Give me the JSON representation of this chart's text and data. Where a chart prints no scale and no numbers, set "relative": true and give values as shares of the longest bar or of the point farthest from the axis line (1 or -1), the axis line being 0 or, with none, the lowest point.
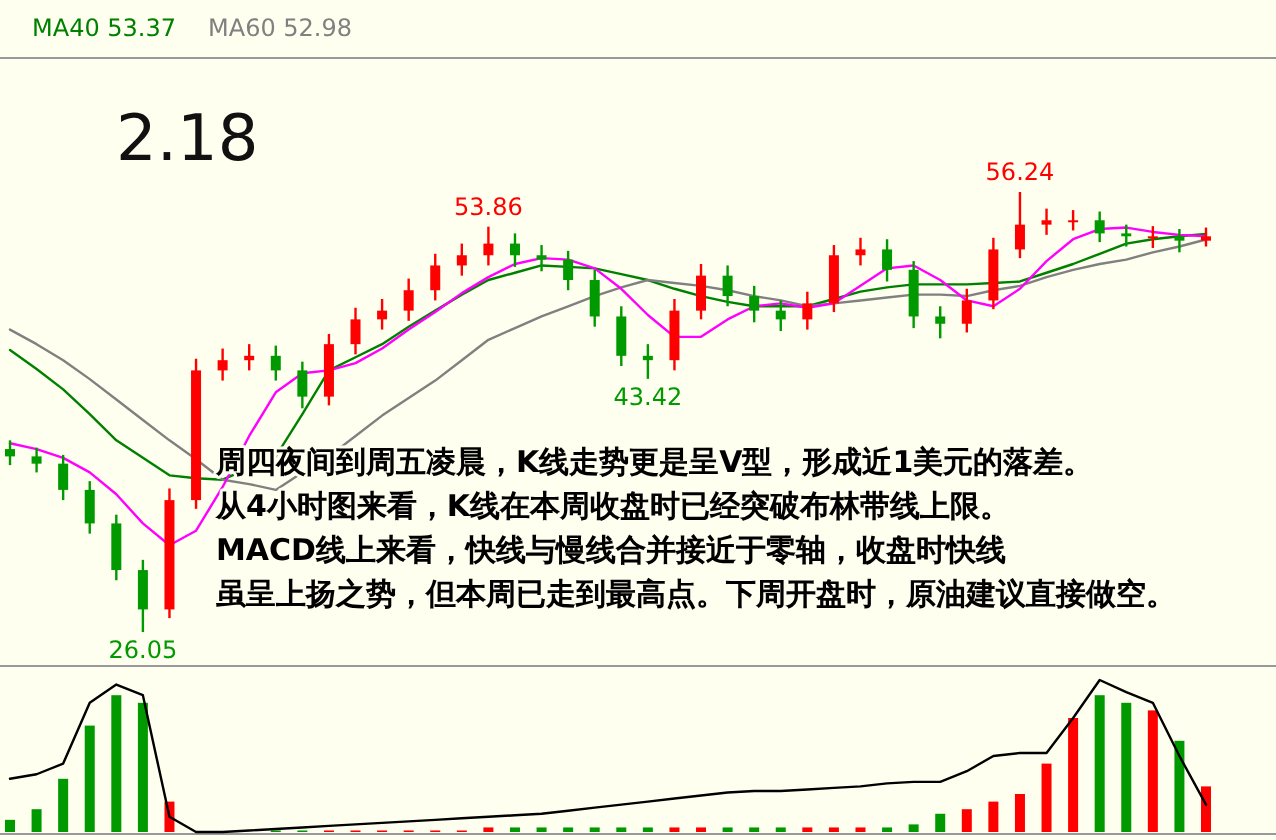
{
  "chart_data": [
    {
      "type": "candlestick",
      "title": "2.18",
      "legend": "top left",
      "categories": [
        null,
        null,
        null,
        null,
        null,
        null,
        null,
        null,
        null,
        null,
        null,
        null,
        null,
        null,
        null,
        null,
        null,
        null,
        null,
        null,
        null,
        null,
        null,
        null,
        null,
        null,
        null,
        null,
        null,
        null,
        null,
        null,
        null,
        null,
        null,
        null,
        null,
        null,
        null,
        null,
        null,
        null,
        null,
        null,
        null,
        null
      ],
      "ohlc": [
        [
          38.6,
          39.2,
          37.5,
          38.1
        ],
        [
          38.1,
          38.7,
          37.0,
          37.6
        ],
        [
          37.6,
          38.2,
          35.1,
          35.8
        ],
        [
          35.8,
          36.4,
          32.8,
          33.5
        ],
        [
          33.5,
          34.1,
          29.6,
          30.3
        ],
        [
          30.3,
          31.0,
          26.05,
          27.6
        ],
        [
          27.6,
          35.9,
          27.0,
          35.1
        ],
        [
          35.1,
          44.8,
          34.5,
          44.0
        ],
        [
          44.0,
          45.5,
          43.3,
          44.7
        ],
        [
          44.7,
          45.8,
          44.0,
          45.0
        ],
        [
          45.0,
          45.7,
          43.3,
          44.0
        ],
        [
          44.0,
          44.6,
          41.4,
          42.2
        ],
        [
          42.2,
          46.5,
          41.6,
          45.8
        ],
        [
          45.8,
          48.3,
          45.1,
          47.5
        ],
        [
          47.5,
          48.9,
          46.8,
          48.1
        ],
        [
          48.1,
          50.3,
          47.4,
          49.5
        ],
        [
          49.5,
          52.0,
          48.8,
          51.2
        ],
        [
          51.2,
          52.7,
          50.5,
          51.9
        ],
        [
          51.9,
          53.86,
          51.2,
          52.7
        ],
        [
          52.7,
          53.4,
          51.1,
          51.9
        ],
        [
          51.9,
          52.6,
          50.8,
          51.6
        ],
        [
          51.6,
          52.2,
          49.5,
          50.2
        ],
        [
          50.2,
          50.9,
          47.0,
          47.7
        ],
        [
          47.7,
          48.4,
          44.3,
          45.0
        ],
        [
          45.0,
          45.8,
          43.42,
          44.7
        ],
        [
          44.7,
          48.9,
          44.0,
          48.1
        ],
        [
          48.1,
          51.3,
          47.5,
          50.5
        ],
        [
          50.5,
          51.2,
          48.4,
          49.1
        ],
        [
          49.1,
          49.8,
          47.3,
          48.1
        ],
        [
          48.1,
          48.8,
          46.7,
          47.5
        ],
        [
          47.5,
          49.4,
          46.8,
          48.6
        ],
        [
          48.6,
          52.6,
          48.0,
          51.9
        ],
        [
          51.9,
          53.1,
          51.2,
          52.3
        ],
        [
          52.3,
          53.0,
          50.1,
          50.9
        ],
        [
          50.9,
          51.5,
          46.9,
          47.7
        ],
        [
          47.7,
          48.4,
          46.2,
          47.2
        ],
        [
          47.2,
          49.6,
          46.6,
          48.8
        ],
        [
          48.8,
          53.1,
          48.2,
          52.3
        ],
        [
          52.3,
          56.24,
          51.7,
          54.0
        ],
        [
          54.0,
          55.1,
          53.3,
          54.3
        ],
        [
          54.3,
          55.0,
          53.6,
          54.3
        ],
        [
          54.3,
          54.9,
          52.8,
          53.4
        ],
        [
          53.4,
          54.0,
          52.5,
          53.2
        ],
        [
          53.2,
          53.9,
          52.4,
          53.2
        ],
        [
          53.2,
          53.7,
          52.1,
          52.9
        ],
        [
          52.9,
          53.8,
          52.5,
          53.2
        ]
      ],
      "colors": [
        "#009900",
        "#009900",
        "#009900",
        "#009900",
        "#009900",
        "#009900",
        "#ff0000",
        "#ff0000",
        "#ff0000",
        "#ff0000",
        "#009900",
        "#009900",
        "#ff0000",
        "#ff0000",
        "#ff0000",
        "#ff0000",
        "#ff0000",
        "#ff0000",
        "#ff0000",
        "#009900",
        "#009900",
        "#009900",
        "#009900",
        "#009900",
        "#009900",
        "#ff0000",
        "#ff0000",
        "#009900",
        "#009900",
        "#009900",
        "#ff0000",
        "#ff0000",
        "#ff0000",
        "#009900",
        "#009900",
        "#009900",
        "#ff0000",
        "#ff0000",
        "#ff0000",
        "#ff0000",
        "#ff0000",
        "#009900",
        "#009900",
        "#ff0000",
        "#009900",
        "#ff0000"
      ],
      "series": [
        {
          "type": "line",
          "name": "MA40 53.37",
          "color": "#008000",
          "values": [
            45.4,
            44.1,
            42.7,
            41.0,
            39.2,
            38.0,
            36.8,
            36.6,
            36.5,
            37.3,
            38.1,
            41.0,
            44.0,
            44.9,
            45.8,
            47.0,
            48.1,
            49.2,
            50.2,
            50.7,
            51.2,
            51.1,
            51.0,
            50.6,
            50.2,
            49.6,
            49.1,
            48.7,
            48.4,
            48.4,
            48.4,
            48.9,
            49.4,
            49.7,
            49.9,
            49.9,
            49.9,
            50.0,
            50.1,
            50.7,
            51.3,
            52.0,
            52.7,
            53.0,
            53.2,
            53.37
          ]
        },
        {
          "type": "line",
          "name": "MA60 52.98",
          "color": "#808080",
          "values": [
            46.8,
            45.8,
            44.7,
            43.4,
            42.0,
            40.6,
            39.2,
            37.9,
            36.5,
            36.2,
            35.8,
            37.0,
            38.1,
            39.5,
            40.9,
            42.1,
            43.3,
            44.7,
            46.1,
            46.9,
            47.7,
            48.4,
            49.1,
            49.7,
            50.2,
            50.0,
            49.8,
            49.5,
            49.1,
            48.8,
            48.4,
            48.6,
            48.8,
            49.0,
            49.2,
            49.2,
            49.1,
            49.5,
            49.8,
            50.4,
            50.9,
            51.3,
            51.6,
            52.1,
            52.5,
            52.98
          ]
        },
        {
          "type": "line",
          "color": "#ff00ff",
          "values": [
            39.0,
            38.6,
            38.0,
            37.0,
            35.5,
            33.5,
            32.0,
            33.0,
            36.0,
            39.5,
            42.5,
            43.8,
            44.0,
            44.5,
            45.5,
            46.8,
            48.0,
            49.3,
            50.4,
            51.3,
            51.7,
            51.6,
            51.0,
            49.6,
            47.8,
            46.3,
            46.3,
            47.5,
            48.4,
            48.6,
            48.3,
            48.6,
            49.8,
            51.0,
            51.2,
            50.2,
            48.8,
            48.4,
            49.6,
            51.5,
            53.0,
            53.7,
            53.8,
            53.5,
            53.3,
            53.2
          ]
        }
      ],
      "annotations": [
        {
          "text": "53.86",
          "y": 53.86
        },
        {
          "text": "43.42",
          "y": 43.42
        },
        {
          "text": "56.24",
          "y": 56.24
        },
        {
          "text": "26.05",
          "y": 26.05
        },
        "周四夜间到周五凌晨，K线走势更是呈V型，形成近1美元的落差。",
        "从4小时图来看，K线在本周收盘时已经突破布林带线上限。",
        "MACD线上来看，快线与慢线合并接近于零轴，收盘时快线",
        "虽呈上扬之势，但本周已走到最高点。下周开盘时，原油建议直接做空。"
      ]
    },
    {
      "type": "bar",
      "relative": true,
      "categories": [
        null,
        null,
        null,
        null,
        null,
        null,
        null,
        null,
        null,
        null,
        null,
        null,
        null,
        null,
        null,
        null,
        null,
        null,
        null,
        null,
        null,
        null,
        null,
        null,
        null,
        null,
        null,
        null,
        null,
        null,
        null,
        null,
        null,
        null,
        null,
        null,
        null,
        null,
        null,
        null,
        null,
        null,
        null,
        null,
        null,
        null
      ],
      "series": [
        {
          "type": "bar",
          "colors": [
            "#009900",
            "#009900",
            "#009900",
            "#009900",
            "#009900",
            "#009900",
            "#ff0000",
            null,
            null,
            null,
            "#009900",
            "#009900",
            "#ff0000",
            "#ff0000",
            "#ff0000",
            "#ff0000",
            "#ff0000",
            "#ff0000",
            "#ff0000",
            "#009900",
            "#009900",
            "#009900",
            "#009900",
            "#009900",
            "#009900",
            "#ff0000",
            "#ff0000",
            "#009900",
            "#009900",
            "#009900",
            "#ff0000",
            "#ff0000",
            "#ff0000",
            "#009900",
            "#009900",
            "#009900",
            "#ff0000",
            "#ff0000",
            "#ff0000",
            "#ff0000",
            "#ff0000",
            "#009900",
            "#009900",
            "#ff0000",
            "#009900",
            "#ff0000"
          ],
          "values": [
            0.08,
            0.15,
            0.35,
            0.7,
            0.9,
            0.85,
            0.2,
            null,
            null,
            null,
            0.01,
            0.01,
            0.01,
            0.01,
            0.01,
            0.01,
            0.01,
            0.01,
            0.03,
            0.03,
            0.03,
            0.03,
            0.03,
            0.03,
            0.03,
            0.03,
            0.03,
            0.03,
            0.03,
            0.03,
            0.03,
            0.03,
            0.03,
            0.03,
            0.05,
            0.12,
            0.15,
            0.2,
            0.25,
            0.45,
            0.75,
            0.9,
            0.85,
            0.8,
            0.6,
            0.3
          ]
        },
        {
          "type": "line",
          "color": "#000000",
          "values": [
            0.35,
            0.38,
            0.45,
            0.85,
            0.97,
            0.9,
            0.1,
            0,
            0,
            0.01,
            0.02,
            0.03,
            0.04,
            0.05,
            0.06,
            0.07,
            0.08,
            0.09,
            0.1,
            0.11,
            0.12,
            0.14,
            0.16,
            0.18,
            0.2,
            0.22,
            0.24,
            0.26,
            0.27,
            0.27,
            0.28,
            0.29,
            0.3,
            0.32,
            0.33,
            0.33,
            0.4,
            0.5,
            0.52,
            0.52,
            0.75,
            1,
            0.92,
            0.85,
            0.5,
            0.18
          ]
        }
      ]
    }
  ]
}
